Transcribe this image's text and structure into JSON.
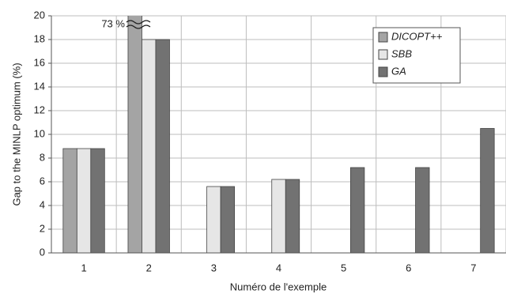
{
  "chart_data": {
    "type": "bar",
    "x_label": "Numéro de l'exemple",
    "y_label": "Gap to the MINLP optimum (%)",
    "categories": [
      "1",
      "2",
      "3",
      "4",
      "5",
      "6",
      "7"
    ],
    "series": [
      {
        "name": "DICOPT++",
        "color": "#a4a4a4",
        "values": [
          8.8,
          73,
          null,
          null,
          null,
          null,
          null
        ],
        "value_labels": [
          null,
          "73 %",
          null,
          null,
          null,
          null,
          null
        ]
      },
      {
        "name": "SBB",
        "color": "#e6e6e6",
        "values": [
          8.8,
          18,
          5.6,
          6.2,
          null,
          null,
          null
        ]
      },
      {
        "name": "GA",
        "color": "#727272",
        "values": [
          8.8,
          18,
          5.6,
          6.2,
          7.2,
          7.2,
          10.5
        ]
      }
    ],
    "ylim": [
      0,
      20
    ],
    "yticks": [
      0,
      2,
      4,
      6,
      8,
      10,
      12,
      14,
      16,
      18,
      20
    ],
    "grid": true,
    "legend": "upper right"
  }
}
